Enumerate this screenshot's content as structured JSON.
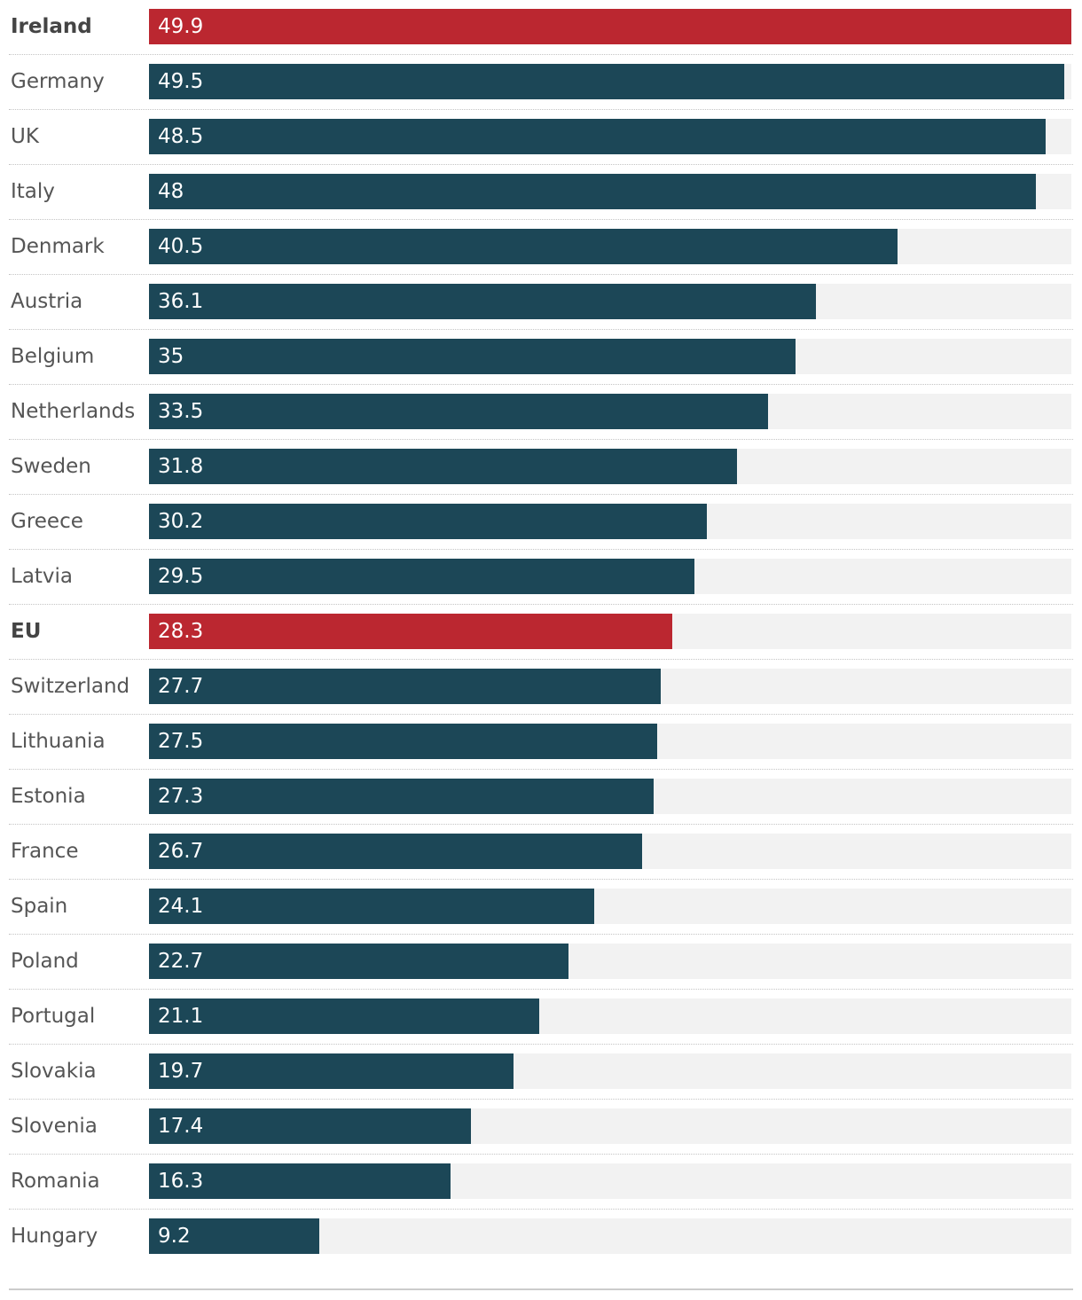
{
  "chart_data": {
    "type": "bar",
    "orientation": "horizontal",
    "categories": [
      "Ireland",
      "Germany",
      "UK",
      "Italy",
      "Denmark",
      "Austria",
      "Belgium",
      "Netherlands",
      "Sweden",
      "Greece",
      "Latvia",
      "EU",
      "Switzerland",
      "Lithuania",
      "Estonia",
      "France",
      "Spain",
      "Poland",
      "Portugal",
      "Slovakia",
      "Slovenia",
      "Romania",
      "Hungary"
    ],
    "values": [
      49.9,
      49.5,
      48.5,
      48,
      40.5,
      36.1,
      35,
      33.5,
      31.8,
      30.2,
      29.5,
      28.3,
      27.7,
      27.5,
      27.3,
      26.7,
      24.1,
      22.7,
      21.1,
      19.7,
      17.4,
      16.3,
      9.2
    ],
    "value_labels": [
      "49.9",
      "49.5",
      "48.5",
      "48",
      "40.5",
      "36.1",
      "35",
      "33.5",
      "31.8",
      "30.2",
      "29.5",
      "28.3",
      "27.7",
      "27.5",
      "27.3",
      "26.7",
      "24.1",
      "22.7",
      "21.1",
      "19.7",
      "17.4",
      "16.3",
      "9.2"
    ],
    "highlighted": [
      "Ireland",
      "EU"
    ],
    "xlim": [
      0,
      49.9
    ],
    "grid": false,
    "legend": "none",
    "colors": {
      "bar": "#1c4757",
      "highlight": "#bb2730",
      "track": "#f2f2f2"
    }
  }
}
